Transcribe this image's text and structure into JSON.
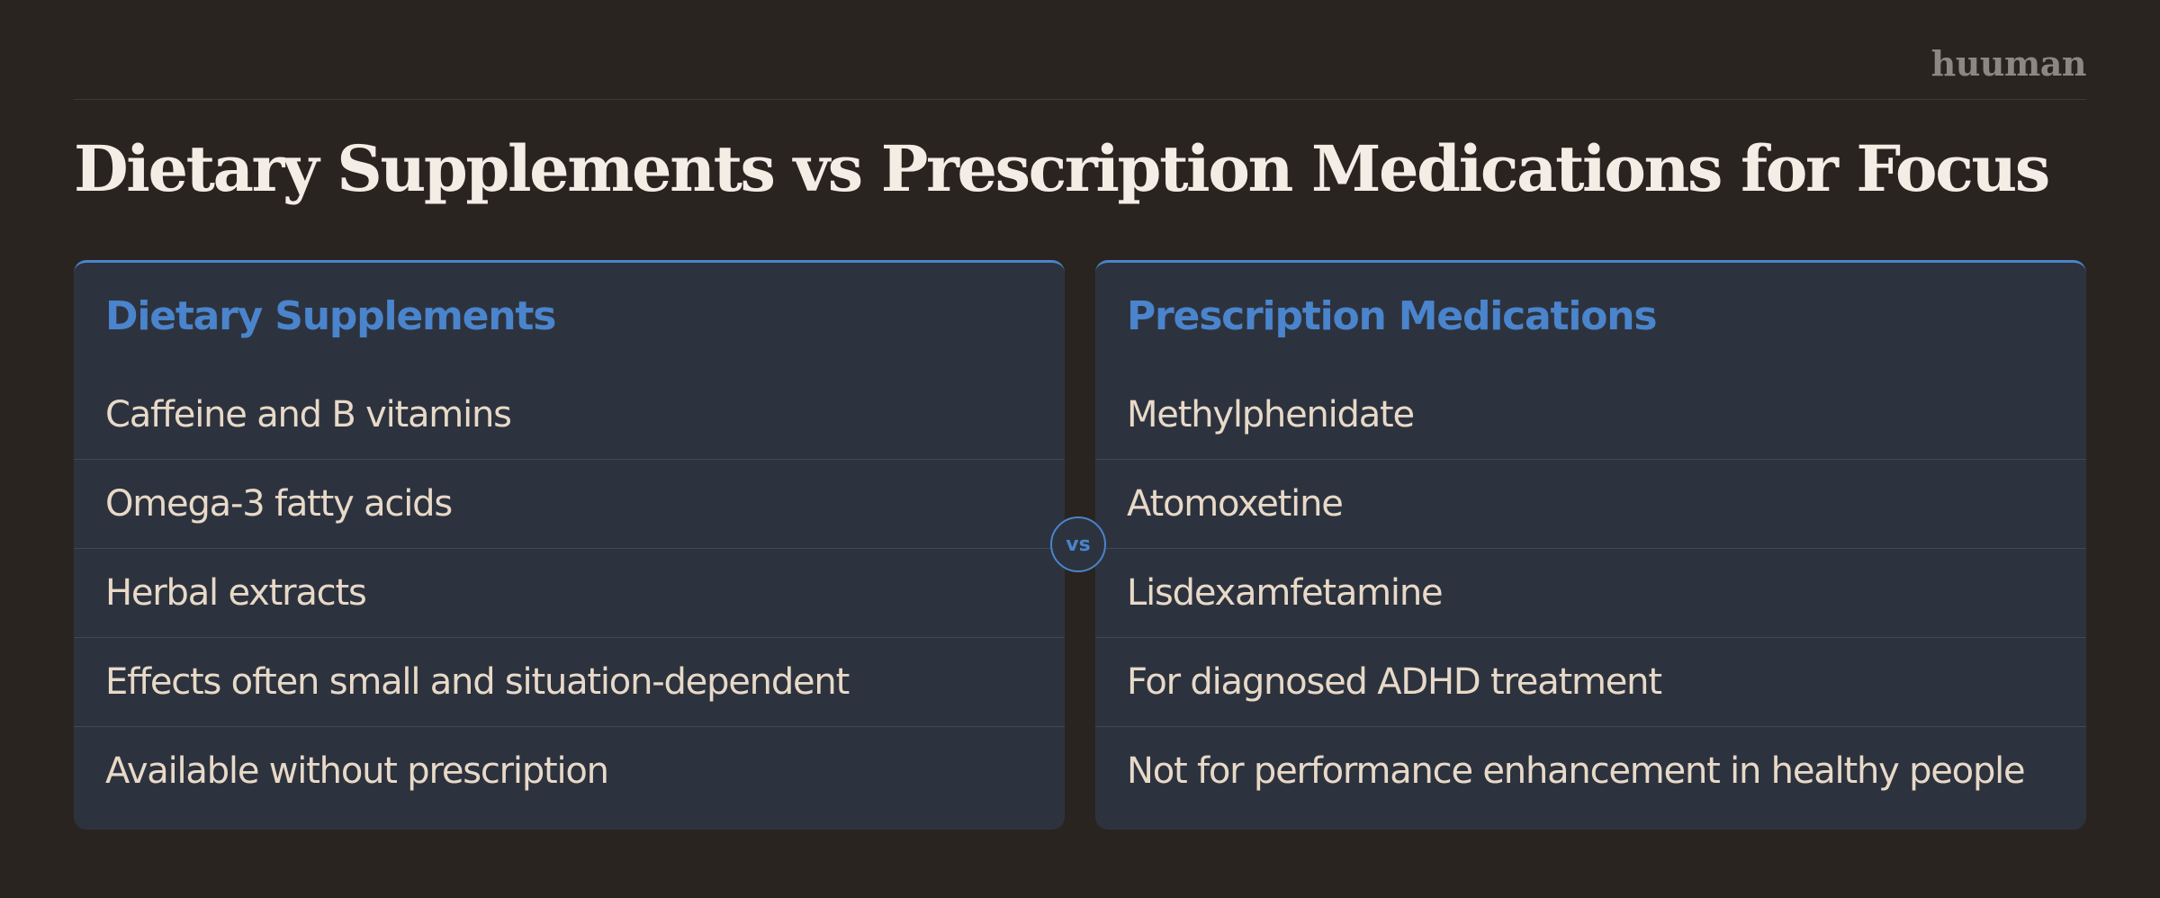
{
  "header": {
    "brand": "huuman",
    "title": "Dietary Supplements vs Prescription Medications for Focus"
  },
  "comparison": {
    "vs_label": "vs",
    "left": {
      "heading": "Dietary Supplements",
      "items": [
        "Caffeine and B vitamins",
        "Omega-3 fatty acids",
        "Herbal extracts",
        "Effects often small and situation-dependent",
        "Available without prescription"
      ]
    },
    "right": {
      "heading": "Prescription Medications",
      "items": [
        "Methylphenidate",
        "Atomoxetine",
        "Lisdexamfetamine",
        "For diagnosed ADHD treatment",
        "Not for performance enhancement in healthy people"
      ]
    }
  },
  "colors": {
    "background": "#29241f",
    "panel": "#2d333e",
    "accent": "#4a84cc",
    "title_text": "#f3ede6",
    "item_text": "#e8d9c8",
    "brand_text": "#8c8782"
  }
}
